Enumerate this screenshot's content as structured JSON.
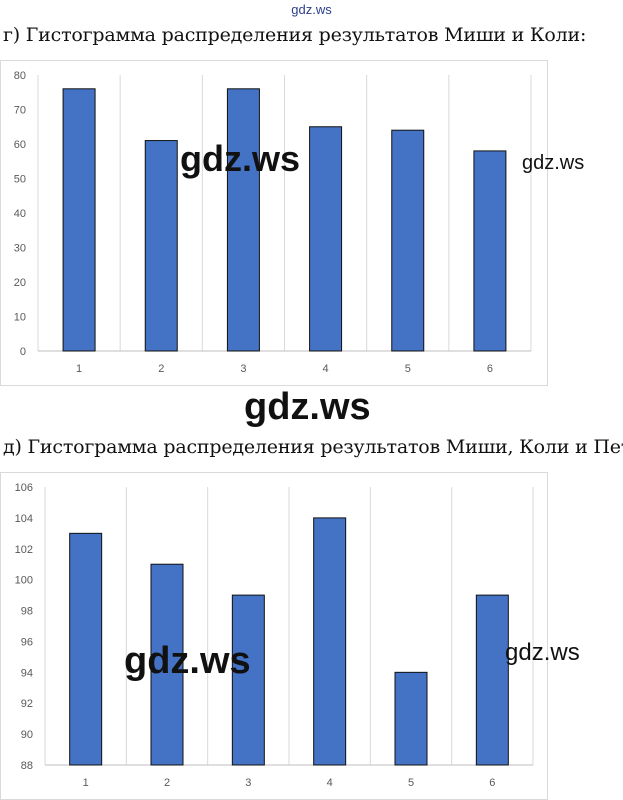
{
  "watermarks": {
    "top": "gdz.ws",
    "chart1_center": "gdz.ws",
    "chart1_right": "gdz.ws",
    "between": "gdz.ws",
    "chart2_left": "gdz.ws",
    "chart2_right": "gdz.ws"
  },
  "captions": {
    "chart1": "г) Гистограмма распределения результатов Миши и Коли:",
    "chart2": "д) Гистограмма распределения результатов Миши, Коли и Пети:"
  },
  "colors": {
    "bar_fill": "#4472C4",
    "bar_stroke": "#111111",
    "grid": "#d9d9d9"
  },
  "chart_data": [
    {
      "type": "bar",
      "categories": [
        "1",
        "2",
        "3",
        "4",
        "5",
        "6"
      ],
      "values": [
        76,
        61,
        76,
        65,
        64,
        58
      ],
      "title": "",
      "xlabel": "",
      "ylabel": "",
      "ylim": [
        0,
        80
      ],
      "yticks": [
        0,
        10,
        20,
        30,
        40,
        50,
        60,
        70,
        80
      ],
      "grid": "vertical"
    },
    {
      "type": "bar",
      "categories": [
        "1",
        "2",
        "3",
        "4",
        "5",
        "6"
      ],
      "values": [
        103,
        101,
        99,
        104,
        94,
        99
      ],
      "title": "",
      "xlabel": "",
      "ylabel": "",
      "ylim": [
        88,
        106
      ],
      "yticks": [
        88,
        90,
        92,
        94,
        96,
        98,
        100,
        102,
        104,
        106
      ],
      "grid": "vertical"
    }
  ]
}
